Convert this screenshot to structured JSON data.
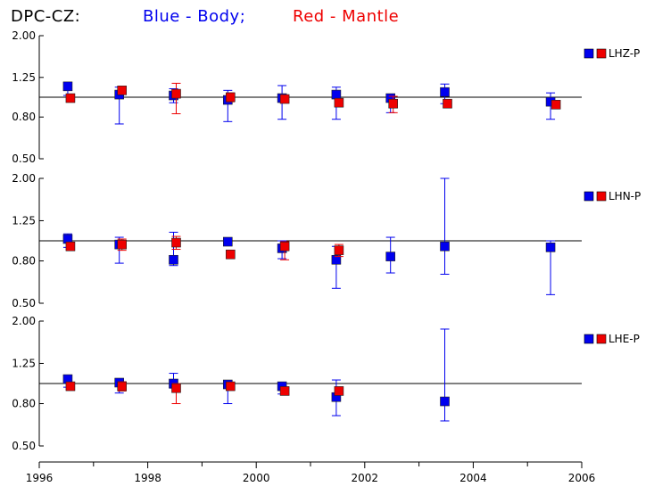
{
  "title": {
    "station": "DPC-CZ:",
    "blue_text": "Blue - Body;",
    "red_text": "Red - Mantle"
  },
  "colors": {
    "body": "#0000ee",
    "mantle": "#ee0000",
    "axis": "#000000"
  },
  "chart_data": [
    {
      "type": "scatter",
      "panel_label": "LHZ-P",
      "yscale": "log",
      "ylim": [
        0.5,
        2.0
      ],
      "yticks": [
        "2.00",
        "1.25",
        "0.80",
        "0.50"
      ],
      "reference_line": 1.0,
      "xlim": [
        1996,
        2006
      ],
      "series": [
        {
          "key": "body",
          "points": [
            {
              "x": 1996.55,
              "y": 1.13,
              "lo": 1.02,
              "hi": 1.16
            },
            {
              "x": 1997.5,
              "y": 1.03,
              "lo": 0.74,
              "hi": 1.12
            },
            {
              "x": 1998.5,
              "y": 1.02,
              "lo": 0.94,
              "hi": 1.1
            },
            {
              "x": 1999.5,
              "y": 0.97,
              "lo": 0.76,
              "hi": 1.08
            },
            {
              "x": 2000.5,
              "y": 0.99,
              "lo": 0.78,
              "hi": 1.14
            },
            {
              "x": 2001.5,
              "y": 1.03,
              "lo": 0.78,
              "hi": 1.12
            },
            {
              "x": 2002.5,
              "y": 0.99,
              "lo": 0.84,
              "hi": 1.03
            },
            {
              "x": 2003.5,
              "y": 1.06,
              "lo": 0.93,
              "hi": 1.16
            },
            {
              "x": 2005.45,
              "y": 0.95,
              "lo": 0.78,
              "hi": 1.05
            }
          ]
        },
        {
          "key": "mantle",
          "points": [
            {
              "x": 1996.55,
              "y": 0.99,
              "lo": 0.95,
              "hi": 1.03
            },
            {
              "x": 1997.5,
              "y": 1.08,
              "lo": 1.04,
              "hi": 1.13
            },
            {
              "x": 1998.5,
              "y": 1.04,
              "lo": 0.83,
              "hi": 1.17
            },
            {
              "x": 1999.5,
              "y": 1.0,
              "lo": 0.95,
              "hi": 1.05
            },
            {
              "x": 2000.5,
              "y": 0.98,
              "lo": 0.95,
              "hi": 1.01
            },
            {
              "x": 2001.5,
              "y": 0.94,
              "lo": 0.91,
              "hi": 0.97
            },
            {
              "x": 2002.5,
              "y": 0.93,
              "lo": 0.84,
              "hi": 1.01
            },
            {
              "x": 2003.5,
              "y": 0.93,
              "lo": 0.9,
              "hi": 0.96
            },
            {
              "x": 2005.5,
              "y": 0.92,
              "lo": 0.88,
              "hi": 0.96
            }
          ]
        }
      ]
    },
    {
      "type": "scatter",
      "panel_label": "LHN-P",
      "yscale": "log",
      "ylim": [
        0.5,
        2.0
      ],
      "yticks": [
        "2.00",
        "1.25",
        "0.80",
        "0.50"
      ],
      "reference_line": 1.0,
      "xlim": [
        1996,
        2006
      ],
      "series": [
        {
          "key": "body",
          "points": [
            {
              "x": 1996.55,
              "y": 1.02,
              "lo": 0.93,
              "hi": 1.08
            },
            {
              "x": 1997.5,
              "y": 0.96,
              "lo": 0.78,
              "hi": 1.04
            },
            {
              "x": 1998.5,
              "y": 0.81,
              "lo": 0.76,
              "hi": 1.1
            },
            {
              "x": 1999.5,
              "y": 0.99,
              "lo": 0.96,
              "hi": 1.02
            },
            {
              "x": 2000.5,
              "y": 0.92,
              "lo": 0.82,
              "hi": 1.0
            },
            {
              "x": 2001.5,
              "y": 0.81,
              "lo": 0.59,
              "hi": 0.94
            },
            {
              "x": 2002.5,
              "y": 0.84,
              "lo": 0.7,
              "hi": 1.04
            },
            {
              "x": 2003.5,
              "y": 0.94,
              "lo": 0.69,
              "hi": 2.0
            },
            {
              "x": 2005.45,
              "y": 0.93,
              "lo": 0.55,
              "hi": 1.0
            }
          ]
        },
        {
          "key": "mantle",
          "points": [
            {
              "x": 1996.55,
              "y": 0.94,
              "lo": 0.9,
              "hi": 0.98
            },
            {
              "x": 1997.5,
              "y": 0.96,
              "lo": 0.9,
              "hi": 1.02
            },
            {
              "x": 1998.5,
              "y": 0.98,
              "lo": 0.91,
              "hi": 1.05
            },
            {
              "x": 1999.5,
              "y": 0.86,
              "lo": 0.82,
              "hi": 0.89
            },
            {
              "x": 2000.5,
              "y": 0.94,
              "lo": 0.81,
              "hi": 0.99
            },
            {
              "x": 2001.5,
              "y": 0.9,
              "lo": 0.84,
              "hi": 0.96
            }
          ]
        }
      ]
    },
    {
      "type": "scatter",
      "panel_label": "LHE-P",
      "yscale": "log",
      "ylim": [
        0.5,
        2.0
      ],
      "yticks": [
        "2.00",
        "1.25",
        "0.80",
        "0.50"
      ],
      "reference_line": 1.0,
      "xlim": [
        1996,
        2006
      ],
      "series": [
        {
          "key": "body",
          "points": [
            {
              "x": 1996.55,
              "y": 1.05,
              "lo": 0.96,
              "hi": 1.09
            },
            {
              "x": 1997.5,
              "y": 1.01,
              "lo": 0.9,
              "hi": 1.04
            },
            {
              "x": 1998.5,
              "y": 1.0,
              "lo": 0.95,
              "hi": 1.12
            },
            {
              "x": 1999.5,
              "y": 0.99,
              "lo": 0.8,
              "hi": 1.02
            },
            {
              "x": 2000.5,
              "y": 0.97,
              "lo": 0.89,
              "hi": 1.0
            },
            {
              "x": 2001.5,
              "y": 0.86,
              "lo": 0.7,
              "hi": 1.04
            },
            {
              "x": 2003.5,
              "y": 0.82,
              "lo": 0.66,
              "hi": 1.83
            }
          ]
        },
        {
          "key": "mantle",
          "points": [
            {
              "x": 1996.55,
              "y": 0.97,
              "lo": 0.94,
              "hi": 1.0
            },
            {
              "x": 1997.5,
              "y": 0.97,
              "lo": 0.92,
              "hi": 1.02
            },
            {
              "x": 1998.5,
              "y": 0.95,
              "lo": 0.8,
              "hi": 1.0
            },
            {
              "x": 1999.5,
              "y": 0.97,
              "lo": 0.94,
              "hi": 1.0
            },
            {
              "x": 2000.5,
              "y": 0.92,
              "lo": 0.89,
              "hi": 0.95
            },
            {
              "x": 2001.5,
              "y": 0.92,
              "lo": 0.89,
              "hi": 0.95
            }
          ]
        }
      ]
    }
  ],
  "x_axis": {
    "major_labels": [
      "1996",
      "1998",
      "2000",
      "2002",
      "2004",
      "2006"
    ],
    "major_values": [
      1996,
      1998,
      2000,
      2002,
      2004,
      2006
    ],
    "minor_values": [
      1997,
      1999,
      2001,
      2003,
      2005
    ]
  }
}
